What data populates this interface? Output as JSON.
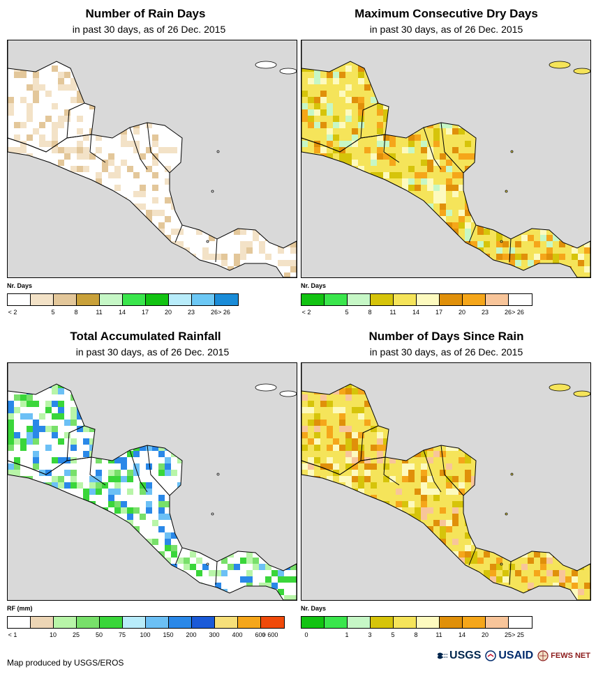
{
  "panels": [
    {
      "id": "rain-days",
      "title": "Number of Rain Days",
      "subtitle": "in past 30 days, as of 26 Dec. 2015",
      "legend_title": "Nr. Days",
      "legend_colors": [
        "#ffffff",
        "#f3e2c7",
        "#e3c79a",
        "#c9a13a",
        "#c6f7c6",
        "#3ae64c",
        "#12c312",
        "#b8ecfa",
        "#6cc8f5",
        "#1a8cd8"
      ],
      "legend_labels": [
        "< 2",
        "5",
        "8",
        "11",
        "14",
        "17",
        "20",
        "23",
        "26",
        "> 26"
      ]
    },
    {
      "id": "dry-days",
      "title": "Maximum Consecutive Dry Days",
      "subtitle": "in past 30 days, as of 26 Dec. 2015",
      "legend_title": "Nr. Days",
      "legend_colors": [
        "#12c312",
        "#3ae64c",
        "#c6f7c6",
        "#d6c40a",
        "#f5e45a",
        "#fdfabf",
        "#e0900a",
        "#f5a61a",
        "#f8c59a",
        "#ffffff"
      ],
      "legend_labels": [
        "< 2",
        "5",
        "8",
        "11",
        "14",
        "17",
        "20",
        "23",
        "26",
        "> 26"
      ]
    },
    {
      "id": "rainfall",
      "title": "Total Accumulated Rainfall",
      "subtitle": "in past 30 days, as of 26 Dec. 2015",
      "legend_title": "RF (mm)",
      "legend_colors": [
        "#ffffff",
        "#ecd5b5",
        "#b8f5a8",
        "#78e06a",
        "#3ad63a",
        "#b8ecfa",
        "#6cc0f5",
        "#2a88e8",
        "#1a5ad8",
        "#f7e07a",
        "#f5a61a",
        "#f04a0a"
      ],
      "legend_labels": [
        "< 1",
        "10",
        "25",
        "50",
        "75",
        "100",
        "150",
        "200",
        "300",
        "400",
        "600",
        "> 600"
      ]
    },
    {
      "id": "days-since",
      "title": "Number of Days Since Rain",
      "subtitle": "in past 30 days, as of 26 Dec. 2015",
      "legend_title": "Nr. Days",
      "legend_colors": [
        "#12c312",
        "#3ae64c",
        "#c6f7c6",
        "#d6c40a",
        "#f5e45a",
        "#fdfabf",
        "#e0900a",
        "#f5a61a",
        "#f8c59a",
        "#ffffff"
      ],
      "legend_labels": [
        "0",
        "1",
        "3",
        "5",
        "8",
        "11",
        "14",
        "20",
        "25",
        "> 25"
      ]
    }
  ],
  "footer": {
    "credit": "Map produced by USGS/EROS"
  },
  "logos": [
    {
      "name": "usgs-logo",
      "text": "USGS"
    },
    {
      "name": "usaid-logo",
      "text": "USAID"
    },
    {
      "name": "fews-net-logo",
      "text": "FEWS NET"
    }
  ]
}
